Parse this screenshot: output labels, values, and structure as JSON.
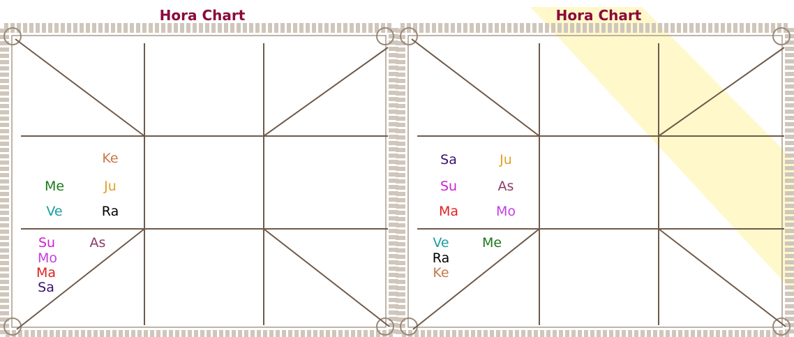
{
  "charts": [
    {
      "title": "Hora Chart",
      "planets": [
        {
          "label": "Ke",
          "color": "#c8784a"
        },
        {
          "label": "Me",
          "color": "#1a7a1a"
        },
        {
          "label": "Ju",
          "color": "#e0a020"
        },
        {
          "label": "Ve",
          "color": "#1a9e9e"
        },
        {
          "label": "Ra",
          "color": "#000000"
        },
        {
          "label": "Su",
          "color": "#d020d0"
        },
        {
          "label": "As",
          "color": "#8a3a6a"
        },
        {
          "label": "Mo",
          "color": "#c040e0"
        },
        {
          "label": "Ma",
          "color": "#e02020"
        },
        {
          "label": "Sa",
          "color": "#3a1070"
        }
      ]
    },
    {
      "title": "Hora Chart",
      "planets": [
        {
          "label": "Sa",
          "color": "#3a1070"
        },
        {
          "label": "Ju",
          "color": "#e0a020"
        },
        {
          "label": "Su",
          "color": "#d020d0"
        },
        {
          "label": "As",
          "color": "#8a3a6a"
        },
        {
          "label": "Ma",
          "color": "#e02020"
        },
        {
          "label": "Mo",
          "color": "#c040e0"
        },
        {
          "label": "Ve",
          "color": "#1a9e9e"
        },
        {
          "label": "Me",
          "color": "#1a7a1a"
        },
        {
          "label": "Ra",
          "color": "#000000"
        },
        {
          "label": "Ke",
          "color": "#c8784a"
        }
      ]
    }
  ]
}
